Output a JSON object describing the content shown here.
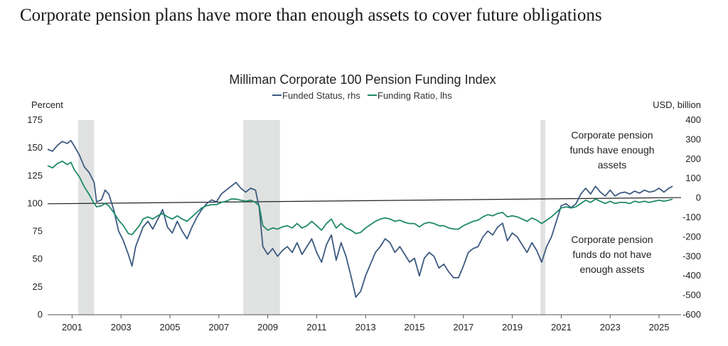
{
  "headline": "Corporate pension plans have more than enough assets to cover future obligations",
  "colors": {
    "funded_status": "#3d5a80",
    "funding_ratio": "#1f8a6a",
    "recession_shade": "#e0e2e1",
    "reference_line": "#222222",
    "text": "#222222"
  },
  "chart_data": {
    "type": "line",
    "title": "Milliman Corporate 100 Pension Funding Index",
    "y_left_label": "Percent",
    "y_right_label": "USD, billion",
    "y_left_range": [
      0,
      175
    ],
    "y_right_range": [
      -600,
      400
    ],
    "y_left_ticks": [
      "0",
      "25",
      "50",
      "75",
      "100",
      "125",
      "150",
      "175"
    ],
    "y_right_ticks": [
      "-600",
      "-500",
      "-400",
      "-300",
      "-200",
      "-100",
      "0",
      "100",
      "200",
      "300",
      "400"
    ],
    "x_range": [
      2000,
      2025.9
    ],
    "x_ticks": [
      "2001",
      "2003",
      "2005",
      "2007",
      "2009",
      "2011",
      "2013",
      "2015",
      "2017",
      "2019",
      "2021",
      "2023",
      "2025"
    ],
    "grid": false,
    "legend_position": "top-center",
    "shaded_periods": [
      [
        2001.25,
        2001.9
      ],
      [
        2008.0,
        2009.5
      ],
      [
        2020.15,
        2020.35
      ]
    ],
    "reference_line": {
      "axis": "right",
      "from": [
        2000.0,
        -30
      ],
      "to": [
        2025.9,
        2
      ]
    },
    "series": [
      {
        "name": "Funded Status, rhs",
        "axis": "right",
        "color": "#3d5a80",
        "points": [
          [
            2000.0,
            250
          ],
          [
            2000.2,
            240
          ],
          [
            2000.4,
            270
          ],
          [
            2000.6,
            290
          ],
          [
            2000.8,
            280
          ],
          [
            2000.95,
            295
          ],
          [
            2001.1,
            265
          ],
          [
            2001.3,
            220
          ],
          [
            2001.5,
            160
          ],
          [
            2001.7,
            130
          ],
          [
            2001.9,
            80
          ],
          [
            2002.0,
            -20
          ],
          [
            2002.2,
            -10
          ],
          [
            2002.35,
            40
          ],
          [
            2002.5,
            20
          ],
          [
            2002.7,
            -60
          ],
          [
            2002.9,
            -170
          ],
          [
            2003.1,
            -220
          ],
          [
            2003.3,
            -290
          ],
          [
            2003.45,
            -350
          ],
          [
            2003.6,
            -250
          ],
          [
            2003.75,
            -200
          ],
          [
            2003.9,
            -150
          ],
          [
            2004.1,
            -120
          ],
          [
            2004.3,
            -160
          ],
          [
            2004.5,
            -110
          ],
          [
            2004.7,
            -60
          ],
          [
            2004.9,
            -150
          ],
          [
            2005.1,
            -180
          ],
          [
            2005.3,
            -120
          ],
          [
            2005.5,
            -170
          ],
          [
            2005.7,
            -210
          ],
          [
            2005.9,
            -150
          ],
          [
            2006.1,
            -100
          ],
          [
            2006.3,
            -60
          ],
          [
            2006.5,
            -30
          ],
          [
            2006.7,
            -10
          ],
          [
            2006.9,
            -20
          ],
          [
            2007.1,
            20
          ],
          [
            2007.3,
            40
          ],
          [
            2007.5,
            60
          ],
          [
            2007.7,
            80
          ],
          [
            2007.9,
            50
          ],
          [
            2008.1,
            30
          ],
          [
            2008.3,
            50
          ],
          [
            2008.5,
            40
          ],
          [
            2008.65,
            -50
          ],
          [
            2008.8,
            -250
          ],
          [
            2009.0,
            -290
          ],
          [
            2009.2,
            -260
          ],
          [
            2009.4,
            -300
          ],
          [
            2009.6,
            -270
          ],
          [
            2009.8,
            -250
          ],
          [
            2010.0,
            -280
          ],
          [
            2010.2,
            -230
          ],
          [
            2010.4,
            -290
          ],
          [
            2010.6,
            -250
          ],
          [
            2010.8,
            -210
          ],
          [
            2011.0,
            -280
          ],
          [
            2011.2,
            -330
          ],
          [
            2011.4,
            -240
          ],
          [
            2011.6,
            -190
          ],
          [
            2011.8,
            -320
          ],
          [
            2012.0,
            -230
          ],
          [
            2012.2,
            -300
          ],
          [
            2012.4,
            -400
          ],
          [
            2012.6,
            -510
          ],
          [
            2012.8,
            -480
          ],
          [
            2013.0,
            -400
          ],
          [
            2013.2,
            -340
          ],
          [
            2013.4,
            -280
          ],
          [
            2013.6,
            -250
          ],
          [
            2013.8,
            -210
          ],
          [
            2014.0,
            -230
          ],
          [
            2014.2,
            -280
          ],
          [
            2014.4,
            -250
          ],
          [
            2014.6,
            -290
          ],
          [
            2014.8,
            -330
          ],
          [
            2015.0,
            -310
          ],
          [
            2015.2,
            -400
          ],
          [
            2015.4,
            -310
          ],
          [
            2015.6,
            -280
          ],
          [
            2015.8,
            -300
          ],
          [
            2016.0,
            -360
          ],
          [
            2016.2,
            -340
          ],
          [
            2016.4,
            -380
          ],
          [
            2016.6,
            -410
          ],
          [
            2016.8,
            -410
          ],
          [
            2017.0,
            -350
          ],
          [
            2017.2,
            -280
          ],
          [
            2017.4,
            -260
          ],
          [
            2017.6,
            -250
          ],
          [
            2017.8,
            -200
          ],
          [
            2018.0,
            -170
          ],
          [
            2018.2,
            -190
          ],
          [
            2018.4,
            -150
          ],
          [
            2018.6,
            -130
          ],
          [
            2018.8,
            -220
          ],
          [
            2019.0,
            -180
          ],
          [
            2019.2,
            -200
          ],
          [
            2019.4,
            -240
          ],
          [
            2019.6,
            -280
          ],
          [
            2019.8,
            -230
          ],
          [
            2020.0,
            -270
          ],
          [
            2020.2,
            -330
          ],
          [
            2020.4,
            -250
          ],
          [
            2020.6,
            -200
          ],
          [
            2020.8,
            -120
          ],
          [
            2021.0,
            -40
          ],
          [
            2021.2,
            -30
          ],
          [
            2021.4,
            -50
          ],
          [
            2021.6,
            -30
          ],
          [
            2021.8,
            20
          ],
          [
            2022.0,
            50
          ],
          [
            2022.2,
            20
          ],
          [
            2022.4,
            60
          ],
          [
            2022.6,
            30
          ],
          [
            2022.8,
            10
          ],
          [
            2023.0,
            40
          ],
          [
            2023.2,
            10
          ],
          [
            2023.4,
            25
          ],
          [
            2023.6,
            30
          ],
          [
            2023.8,
            20
          ],
          [
            2024.0,
            35
          ],
          [
            2024.2,
            25
          ],
          [
            2024.4,
            40
          ],
          [
            2024.6,
            30
          ],
          [
            2024.8,
            35
          ],
          [
            2025.0,
            50
          ],
          [
            2025.2,
            30
          ],
          [
            2025.4,
            50
          ],
          [
            2025.55,
            60
          ]
        ]
      },
      {
        "name": "Funding Ratio, lhs",
        "axis": "left",
        "color": "#1f8a6a",
        "points": [
          [
            2000.0,
            134
          ],
          [
            2000.2,
            132
          ],
          [
            2000.4,
            136
          ],
          [
            2000.6,
            138
          ],
          [
            2000.8,
            135
          ],
          [
            2000.95,
            137
          ],
          [
            2001.1,
            130
          ],
          [
            2001.3,
            124
          ],
          [
            2001.5,
            115
          ],
          [
            2001.7,
            108
          ],
          [
            2001.9,
            100
          ],
          [
            2002.0,
            97
          ],
          [
            2002.2,
            98
          ],
          [
            2002.35,
            100
          ],
          [
            2002.5,
            98
          ],
          [
            2002.7,
            92
          ],
          [
            2002.9,
            85
          ],
          [
            2003.1,
            80
          ],
          [
            2003.3,
            73
          ],
          [
            2003.45,
            72
          ],
          [
            2003.6,
            76
          ],
          [
            2003.75,
            80
          ],
          [
            2003.9,
            86
          ],
          [
            2004.1,
            88
          ],
          [
            2004.3,
            86
          ],
          [
            2004.5,
            89
          ],
          [
            2004.7,
            91
          ],
          [
            2004.9,
            88
          ],
          [
            2005.1,
            86
          ],
          [
            2005.3,
            89
          ],
          [
            2005.5,
            86
          ],
          [
            2005.7,
            84
          ],
          [
            2005.9,
            88
          ],
          [
            2006.1,
            92
          ],
          [
            2006.3,
            96
          ],
          [
            2006.5,
            98
          ],
          [
            2006.7,
            99
          ],
          [
            2006.9,
            99
          ],
          [
            2007.1,
            101
          ],
          [
            2007.3,
            102
          ],
          [
            2007.5,
            104
          ],
          [
            2007.7,
            104
          ],
          [
            2007.9,
            103
          ],
          [
            2008.1,
            102
          ],
          [
            2008.3,
            103
          ],
          [
            2008.5,
            101
          ],
          [
            2008.65,
            98
          ],
          [
            2008.8,
            80
          ],
          [
            2009.0,
            76
          ],
          [
            2009.2,
            78
          ],
          [
            2009.4,
            77
          ],
          [
            2009.6,
            79
          ],
          [
            2009.8,
            80
          ],
          [
            2010.0,
            78
          ],
          [
            2010.2,
            82
          ],
          [
            2010.4,
            78
          ],
          [
            2010.6,
            80
          ],
          [
            2010.8,
            84
          ],
          [
            2011.0,
            80
          ],
          [
            2011.2,
            76
          ],
          [
            2011.4,
            82
          ],
          [
            2011.6,
            86
          ],
          [
            2011.8,
            78
          ],
          [
            2012.0,
            82
          ],
          [
            2012.2,
            78
          ],
          [
            2012.4,
            76
          ],
          [
            2012.6,
            73
          ],
          [
            2012.8,
            74
          ],
          [
            2013.0,
            78
          ],
          [
            2013.2,
            81
          ],
          [
            2013.4,
            84
          ],
          [
            2013.6,
            86
          ],
          [
            2013.8,
            87
          ],
          [
            2014.0,
            86
          ],
          [
            2014.2,
            84
          ],
          [
            2014.4,
            85
          ],
          [
            2014.6,
            83
          ],
          [
            2014.8,
            82
          ],
          [
            2015.0,
            82
          ],
          [
            2015.2,
            79
          ],
          [
            2015.4,
            82
          ],
          [
            2015.6,
            83
          ],
          [
            2015.8,
            82
          ],
          [
            2016.0,
            80
          ],
          [
            2016.2,
            80
          ],
          [
            2016.4,
            78
          ],
          [
            2016.6,
            77
          ],
          [
            2016.8,
            77
          ],
          [
            2017.0,
            80
          ],
          [
            2017.2,
            82
          ],
          [
            2017.4,
            84
          ],
          [
            2017.6,
            85
          ],
          [
            2017.8,
            88
          ],
          [
            2018.0,
            90
          ],
          [
            2018.2,
            89
          ],
          [
            2018.4,
            91
          ],
          [
            2018.6,
            92
          ],
          [
            2018.8,
            88
          ],
          [
            2019.0,
            89
          ],
          [
            2019.2,
            88
          ],
          [
            2019.4,
            86
          ],
          [
            2019.6,
            84
          ],
          [
            2019.8,
            87
          ],
          [
            2020.0,
            85
          ],
          [
            2020.2,
            82
          ],
          [
            2020.4,
            85
          ],
          [
            2020.6,
            88
          ],
          [
            2020.8,
            92
          ],
          [
            2021.0,
            96
          ],
          [
            2021.2,
            97
          ],
          [
            2021.4,
            96
          ],
          [
            2021.6,
            97
          ],
          [
            2021.8,
            100
          ],
          [
            2022.0,
            103
          ],
          [
            2022.2,
            101
          ],
          [
            2022.4,
            104
          ],
          [
            2022.6,
            102
          ],
          [
            2022.8,
            100
          ],
          [
            2023.0,
            102
          ],
          [
            2023.2,
            100
          ],
          [
            2023.4,
            101
          ],
          [
            2023.6,
            101
          ],
          [
            2023.8,
            100
          ],
          [
            2024.0,
            102
          ],
          [
            2024.2,
            101
          ],
          [
            2024.4,
            102
          ],
          [
            2024.6,
            101
          ],
          [
            2024.8,
            102
          ],
          [
            2025.0,
            103
          ],
          [
            2025.2,
            102
          ],
          [
            2025.4,
            103
          ],
          [
            2025.55,
            104
          ]
        ]
      }
    ],
    "annotations": [
      {
        "lines": [
          "Corporate pension",
          "funds have enough",
          "assets"
        ]
      },
      {
        "lines": [
          "Corporate pension",
          "funds do not have",
          "enough assets"
        ]
      }
    ]
  }
}
